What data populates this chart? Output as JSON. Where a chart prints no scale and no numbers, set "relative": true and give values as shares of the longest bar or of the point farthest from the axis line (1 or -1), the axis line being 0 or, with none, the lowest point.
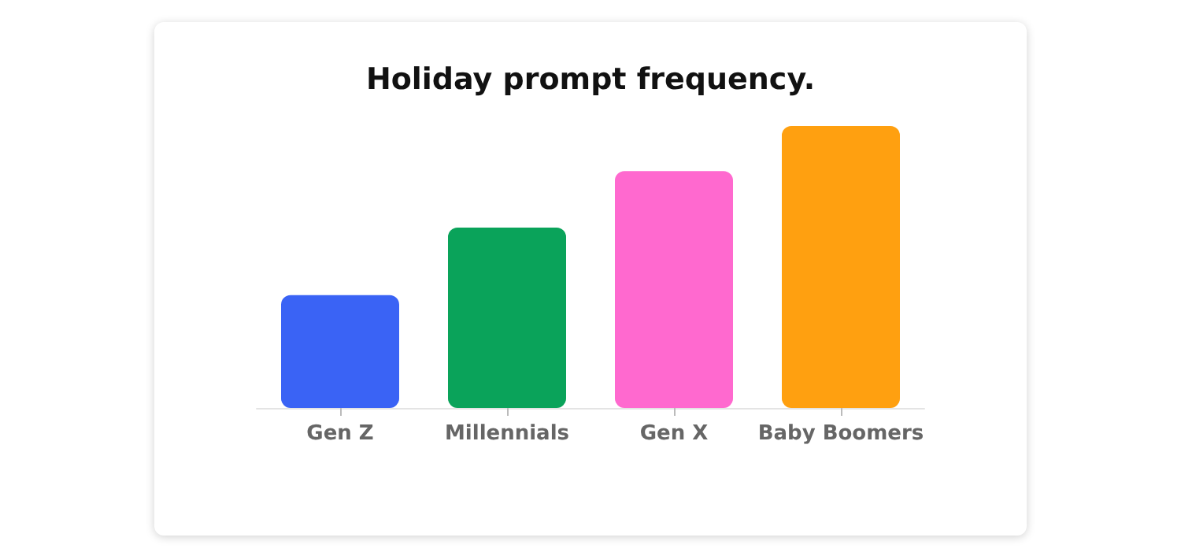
{
  "chart_data": {
    "type": "bar",
    "title": "Holiday prompt frequency.",
    "relative": true,
    "categories": [
      "Gen Z",
      "Millennials",
      "Gen X",
      "Baby Boomers"
    ],
    "values": [
      0.4,
      0.64,
      0.84,
      1
    ],
    "colors": [
      "#3a63f5",
      "#0aa35a",
      "#ff69cf",
      "#ffa010"
    ]
  }
}
